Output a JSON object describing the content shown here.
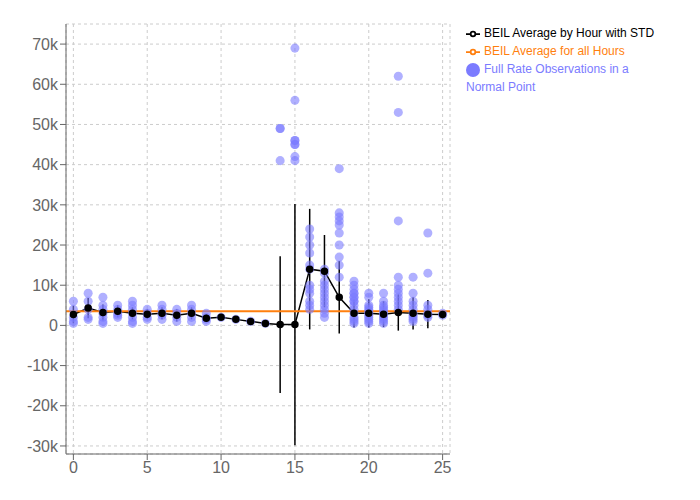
{
  "chart_data": {
    "type": "scatter",
    "grid": true,
    "legend": "right",
    "xlim": [
      -0.5,
      25.5
    ],
    "xticks": [
      0,
      5,
      10,
      15,
      20,
      25
    ],
    "ylim": [
      -32000,
      75000
    ],
    "yticks": [
      {
        "value": -30000,
        "label": "-30k"
      },
      {
        "value": -20000,
        "label": "-20k"
      },
      {
        "value": -10000,
        "label": "-10k"
      },
      0,
      {
        "value": 10000,
        "label": "10k"
      },
      {
        "value": 20000,
        "label": "20k"
      },
      {
        "value": 30000,
        "label": "30k"
      },
      {
        "value": 40000,
        "label": "40k"
      },
      {
        "value": 50000,
        "label": "50k"
      },
      {
        "value": 60000,
        "label": "60k"
      },
      {
        "value": 70000,
        "label": "70k"
      }
    ],
    "series": [
      {
        "name": "Full Rate Observations in a Normal Point",
        "type": "scatter",
        "color": "#7b7bff",
        "marker": "circle",
        "x": [
          0,
          0,
          0,
          0,
          0,
          1,
          1,
          1,
          1,
          1,
          2,
          2,
          2,
          2,
          2,
          2,
          2,
          3,
          3,
          3,
          3,
          3,
          4,
          4,
          4,
          4,
          4,
          4,
          4,
          5,
          5,
          5,
          5,
          6,
          6,
          6,
          6,
          6,
          7,
          7,
          7,
          7,
          8,
          8,
          8,
          8,
          8,
          9,
          9,
          9,
          9,
          10,
          11,
          12,
          13,
          14,
          14,
          14,
          15,
          15,
          15,
          15,
          15,
          15,
          15,
          15,
          16,
          16,
          16,
          16,
          16,
          16,
          16,
          16,
          16,
          16,
          16,
          16,
          17,
          17,
          17,
          17,
          17,
          17,
          17,
          17,
          17,
          17,
          17,
          17,
          18,
          18,
          18,
          18,
          18,
          18,
          18,
          18,
          18,
          18,
          19,
          19,
          19,
          19,
          19,
          19,
          19,
          19,
          19,
          19,
          19,
          19,
          19,
          19,
          19,
          19,
          20,
          20,
          20,
          20,
          20,
          20,
          20,
          20,
          20,
          20,
          20,
          20,
          21,
          21,
          21,
          21,
          21,
          21,
          21,
          21,
          21,
          21,
          21,
          21,
          22,
          22,
          22,
          22,
          22,
          22,
          22,
          22,
          22,
          22,
          22,
          23,
          23,
          23,
          23,
          23,
          23,
          23,
          23,
          23,
          23,
          24,
          24,
          24,
          24,
          24,
          24,
          24,
          25,
          25
        ],
        "values": [
          6000,
          4000,
          2000,
          1000,
          500,
          8000,
          6000,
          4000,
          2000,
          1500,
          7000,
          5000,
          4000,
          3000,
          2000,
          1000,
          500,
          5000,
          4000,
          3000,
          2500,
          2000,
          6000,
          5000,
          4000,
          3000,
          2000,
          1000,
          500,
          4000,
          3000,
          2000,
          1500,
          5000,
          4000,
          3000,
          2500,
          1500,
          4000,
          3000,
          2000,
          1000,
          5000,
          4000,
          3000,
          2000,
          1000,
          3000,
          2000,
          1500,
          1000,
          2000,
          1500,
          1000,
          500,
          49000,
          41000,
          49000,
          69000,
          56000,
          46000,
          45000,
          42000,
          46000,
          45000,
          41000,
          24000,
          22000,
          20000,
          18000,
          15000,
          14000,
          10000,
          9000,
          8000,
          6000,
          5000,
          4000,
          14000,
          13000,
          11000,
          10000,
          9000,
          8000,
          7000,
          6000,
          5000,
          4000,
          3000,
          2000,
          39000,
          28000,
          27000,
          26000,
          25000,
          23000,
          20000,
          17000,
          15000,
          12000,
          11000,
          10000,
          9000,
          8000,
          7000,
          6000,
          5000,
          4000,
          3000,
          2000,
          1500,
          1000,
          500,
          8000,
          7000,
          6000,
          5000,
          4500,
          4000,
          3500,
          3000,
          2500,
          2000,
          1500,
          1000,
          500,
          8000,
          7000,
          6000,
          5000,
          4500,
          4000,
          3500,
          3000,
          2500,
          2000,
          1500,
          1000,
          500,
          8000,
          62000,
          53000,
          26000,
          12000,
          10000,
          9000,
          8000,
          7000,
          6000,
          5000,
          4000,
          12000,
          8000,
          6000,
          5000,
          4000,
          3000,
          2500,
          2000,
          1500,
          1000,
          23000,
          13000,
          5000,
          4000,
          3000,
          2500,
          2000,
          3000,
          2500
        ]
      },
      {
        "name": "BEIL Average by Hour with STD",
        "type": "line",
        "color": "black",
        "marker": "circle",
        "x": [
          0,
          1,
          2,
          3,
          4,
          5,
          6,
          7,
          8,
          9,
          10,
          11,
          12,
          13,
          14,
          15,
          16,
          17,
          18,
          19,
          20,
          21,
          22,
          23,
          24,
          25
        ],
        "values": [
          2700,
          4300,
          3200,
          3500,
          3000,
          2800,
          3000,
          2500,
          3000,
          1800,
          2000,
          1500,
          1000,
          500,
          200,
          200,
          14000,
          13500,
          7000,
          3000,
          3000,
          2800,
          3200,
          3000,
          2800,
          2700
        ],
        "errors": [
          2200,
          2500,
          2000,
          1500,
          1500,
          1200,
          1500,
          1500,
          1500,
          1000,
          500,
          500,
          500,
          300,
          17000,
          30000,
          15000,
          9000,
          9000,
          3500,
          3500,
          3200,
          4500,
          4000,
          3500,
          1000
        ]
      },
      {
        "name": "BEIL Average for all Hours",
        "type": "hline",
        "color": "#ff7f0e",
        "value": 3500
      }
    ]
  }
}
